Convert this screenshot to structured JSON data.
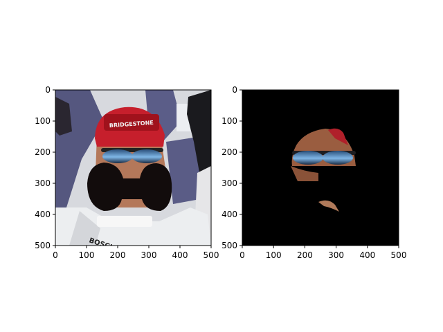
{
  "panels": [
    {
      "name": "left-panel",
      "x_ticks": [
        "0",
        "100",
        "200",
        "300",
        "400",
        "500"
      ],
      "y_ticks": [
        "0",
        "100",
        "200",
        "300",
        "400",
        "500"
      ],
      "image": {
        "description_colors": {
          "background_light": "#d9dbe0",
          "wall_purple": "#5a5c86",
          "cap_red": "#c8202e",
          "skin": "#b97a5b",
          "mask_blob": "#120c0c",
          "suit_white": "#eceef0"
        },
        "cap_lettering": "BRIDGESTONE",
        "suit_lettering": "BOSCH"
      }
    },
    {
      "name": "right-panel",
      "x_ticks": [
        "0",
        "100",
        "200",
        "300",
        "400",
        "500"
      ],
      "y_ticks": [
        "0",
        "100",
        "200",
        "300",
        "400",
        "500"
      ],
      "image": {
        "description_colors": {
          "background": "#000000",
          "skin": "#9c5f40",
          "cap_red": "#b0202a",
          "lens_blue": "#6ea8d8"
        }
      }
    }
  ]
}
